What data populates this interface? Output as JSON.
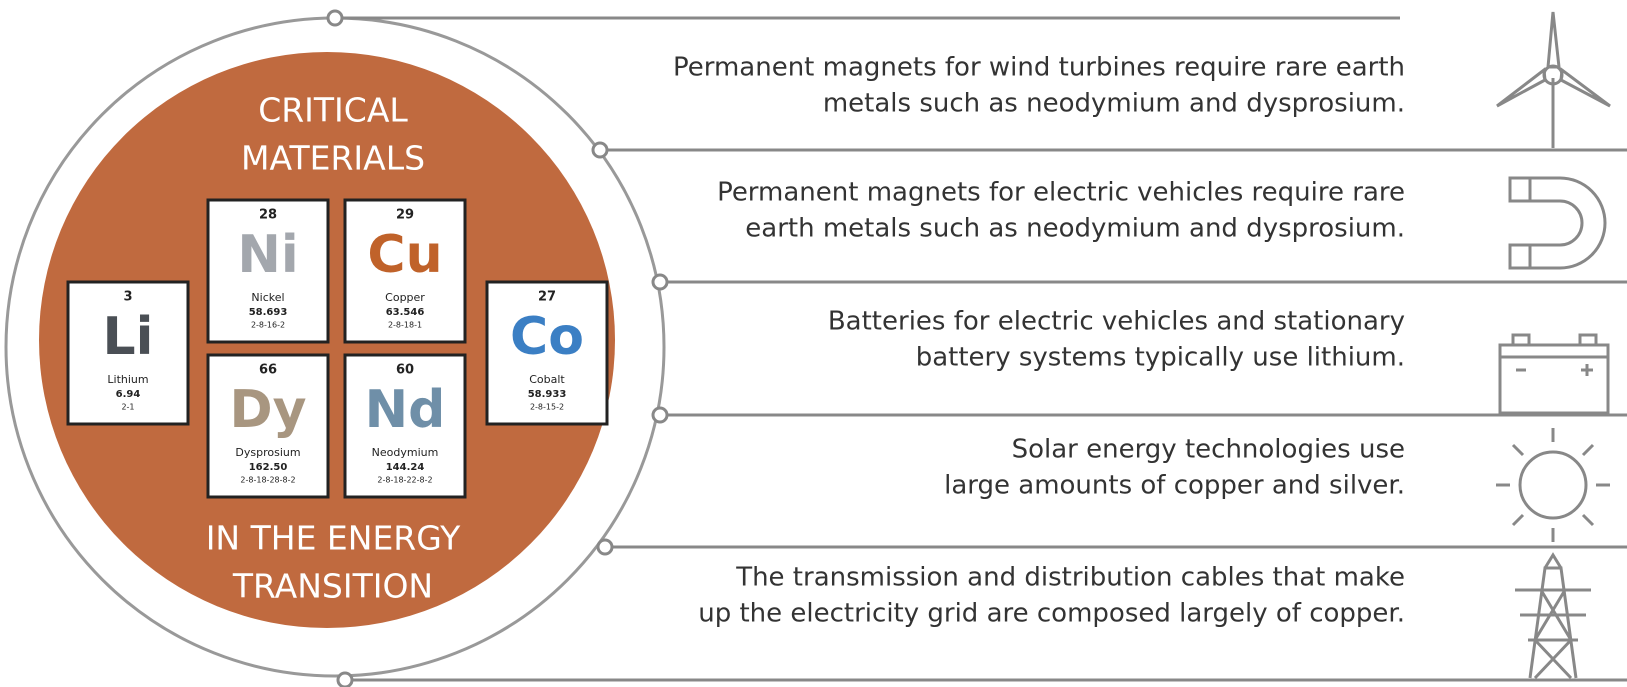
{
  "title": [
    "CRITICAL",
    "MATERIALS"
  ],
  "subtitle": [
    "IN THE ENERGY",
    "TRANSITION"
  ],
  "elements": [
    {
      "number": "3",
      "symbol": "Li",
      "name": "Lithium",
      "mass": "6.94",
      "config": "2-1"
    },
    {
      "number": "28",
      "symbol": "Ni",
      "name": "Nickel",
      "mass": "58.693",
      "config": "2-8-16-2"
    },
    {
      "number": "29",
      "symbol": "Cu",
      "name": "Copper",
      "mass": "63.546",
      "config": "2-8-18-1"
    },
    {
      "number": "66",
      "symbol": "Dy",
      "name": "Dysprosium",
      "mass": "162.50",
      "config": "2-8-18-28-8-2"
    },
    {
      "number": "60",
      "symbol": "Nd",
      "name": "Neodymium",
      "mass": "144.24",
      "config": "2-8-18-22-8-2"
    },
    {
      "number": "27",
      "symbol": "Co",
      "name": "Cobalt",
      "mass": "58.933",
      "config": "2-8-15-2"
    }
  ],
  "items": [
    {
      "lines": [
        "Permanent magnets for wind turbines require rare earth",
        "metals such as neodymium and dysprosium."
      ]
    },
    {
      "lines": [
        "Permanent magnets for electric vehicles require rare",
        "earth metals such as neodymium and dysprosium."
      ]
    },
    {
      "lines": [
        "Batteries for electric vehicles and stationary",
        "battery systems typically use lithium."
      ]
    },
    {
      "lines": [
        "Solar energy technologies use",
        "large amounts of copper and silver."
      ]
    },
    {
      "lines": [
        "The transmission and distribution cables that make",
        "up the electricity grid are composed largely of copper."
      ]
    }
  ]
}
